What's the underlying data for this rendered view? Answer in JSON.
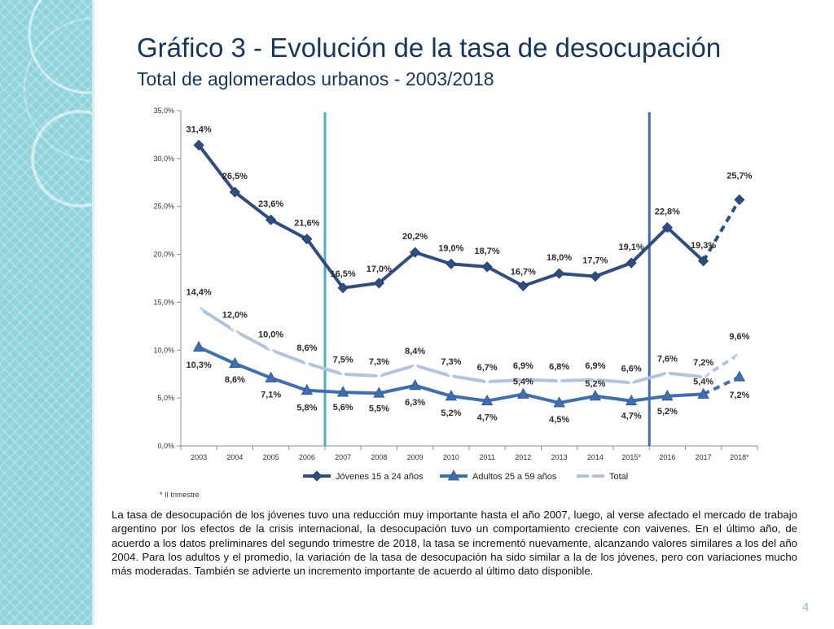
{
  "title": "Gráfico 3 - Evolución de la tasa de desocupación",
  "subtitle": "Total de aglomerados urbanos - 2003/2018",
  "footnote": "* II trimestre",
  "paragraph": "La tasa de desocupación de los jóvenes tuvo una reducción muy importante hasta el año 2007, luego, al verse afectado el mercado de trabajo argentino por los efectos de la crisis internacional, la desocupación tuvo un comportamiento creciente con vaivenes. En el último año, de acuerdo a los datos preliminares del segundo trimestre de 2018, la tasa se incrementó nuevamente, alcanzando valores similares a los del año 2004. Para los adultos y el promedio, la variación de la tasa de desocupación ha sido similar a la de los jóvenes, pero con variaciones mucho más moderadas. También se advierte un incremento importante de acuerdo al último dato disponible.",
  "page_number": "4",
  "colors": {
    "jovenes": "#2e4d80",
    "adultos": "#3e6fb0",
    "total": "#b2c3e0",
    "band": "#8fd3dc",
    "divider_left": "#4bacc6",
    "divider_right": "#3e6fb0",
    "title": "#17365d"
  },
  "chart_data": {
    "type": "line",
    "categories": [
      "2003",
      "2004",
      "2005",
      "2006",
      "2007",
      "2008",
      "2009",
      "2010",
      "2011",
      "2012",
      "2013",
      "2014",
      "2015*",
      "2016",
      "2017",
      "2018*"
    ],
    "ylim": [
      0,
      35
    ],
    "yticks": [
      0,
      5,
      10,
      15,
      20,
      25,
      30,
      35
    ],
    "ytick_labels": [
      "0,0%",
      "5,0%",
      "10,0%",
      "15,0%",
      "20,0%",
      "25,0%",
      "30,0%",
      "35,0%"
    ],
    "vertical_dividers_after": [
      "2006",
      "2015*"
    ],
    "dashed_last_segment": true,
    "series": [
      {
        "name": "Jóvenes 15 a 24 años",
        "marker": "diamond",
        "values": [
          31.4,
          26.5,
          23.6,
          21.6,
          16.5,
          17.0,
          20.2,
          19.0,
          18.7,
          16.7,
          18.0,
          17.7,
          19.1,
          22.8,
          19.3,
          25.7
        ],
        "labels": [
          "31,4%",
          "26,5%",
          "23,6%",
          "21,6%",
          "16,5%",
          "17,0%",
          "20,2%",
          "19,0%",
          "18,7%",
          "16,7%",
          "18,0%",
          "17,7%",
          "19,1%",
          "22,8%",
          "19,3%",
          "25,7%"
        ]
      },
      {
        "name": "Adultos 25 a 59 años",
        "marker": "triangle",
        "values": [
          10.3,
          8.6,
          7.1,
          5.8,
          5.6,
          5.5,
          6.3,
          5.2,
          4.7,
          5.4,
          4.5,
          5.2,
          4.7,
          5.2,
          5.4,
          7.2
        ],
        "labels": [
          "10,3%",
          "8,6%",
          "7,1%",
          "5,8%",
          "5,6%",
          "5,5%",
          "6,3%",
          "5,2%",
          "4,7%",
          "5,4%",
          "4,5%",
          "5,2%",
          "4,7%",
          "5,2%",
          "5,4%",
          "7,2%"
        ]
      },
      {
        "name": "Total",
        "marker": "star",
        "values": [
          14.4,
          12.0,
          10.0,
          8.6,
          7.5,
          7.3,
          8.4,
          7.3,
          6.7,
          6.9,
          6.8,
          6.9,
          6.6,
          7.6,
          7.2,
          9.6
        ],
        "labels": [
          "14,4%",
          "12,0%",
          "10,0%",
          "8,6%",
          "7,5%",
          "7,3%",
          "8,4%",
          "7,3%",
          "6,7%",
          "6,9%",
          "6,8%",
          "6,9%",
          "6,6%",
          "7,6%",
          "7,2%",
          "9,6%"
        ]
      }
    ]
  }
}
